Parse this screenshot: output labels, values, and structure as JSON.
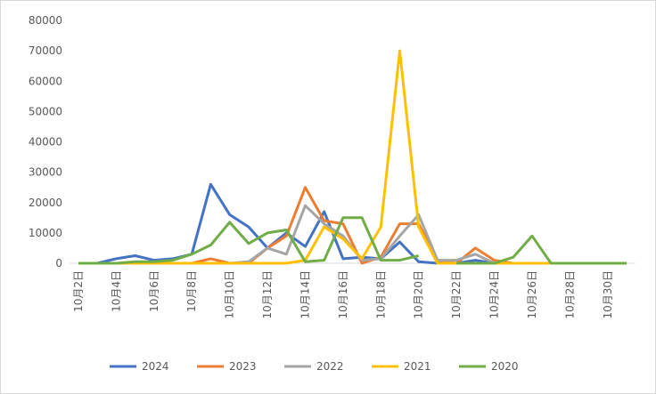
{
  "chart_data": {
    "type": "line",
    "categories": [
      "10月2日",
      null,
      "10月4日",
      null,
      "10月6日",
      null,
      "10月8日",
      null,
      "10月10日",
      null,
      "10月12日",
      null,
      "10月14日",
      null,
      "10月16日",
      null,
      "10月18日",
      null,
      "10月20日",
      null,
      "10月22日",
      null,
      "10月24日",
      null,
      "10月26日",
      null,
      "10月28日",
      null,
      "10月30日",
      null
    ],
    "series": [
      {
        "name": "2024",
        "color": "#4472c4",
        "values": [
          0,
          0,
          1500,
          2500,
          1000,
          1500,
          3000,
          26000,
          16000,
          12000,
          5000,
          10000,
          5500,
          17000,
          1500,
          2000,
          1500,
          7000,
          500,
          0,
          0,
          1000,
          0,
          0,
          0,
          0,
          0,
          0,
          0,
          0
        ]
      },
      {
        "name": "2023",
        "color": "#ed7d31",
        "values": [
          0,
          0,
          0,
          0,
          0,
          0,
          0,
          1500,
          0,
          0,
          5000,
          9000,
          25000,
          14000,
          13000,
          0,
          2000,
          13000,
          13000,
          1000,
          0,
          5000,
          1000,
          0,
          0,
          0,
          0,
          0,
          0,
          0
        ]
      },
      {
        "name": "2022",
        "color": "#a5a5a5",
        "values": [
          0,
          0,
          0,
          0,
          0,
          0,
          0,
          0,
          0,
          500,
          5000,
          3000,
          19000,
          13000,
          9000,
          1000,
          1500,
          9000,
          16000,
          1000,
          1000,
          3000,
          0,
          0,
          0,
          0,
          0,
          0,
          0,
          0
        ]
      },
      {
        "name": "2021",
        "color": "#ffc000",
        "values": [
          0,
          0,
          0,
          0,
          0,
          0,
          0,
          0,
          0,
          0,
          0,
          0,
          1000,
          12000,
          8000,
          1500,
          12000,
          70000,
          12000,
          0,
          0,
          0,
          0,
          0,
          0,
          0,
          0,
          0,
          0,
          0
        ]
      },
      {
        "name": "2020",
        "color": "#70ad47",
        "values": [
          0,
          0,
          0,
          500,
          500,
          1000,
          3000,
          6000,
          13500,
          6500,
          10000,
          11000,
          500,
          1000,
          15000,
          15000,
          1000,
          1000,
          2500,
          null,
          0,
          0,
          0,
          2000,
          9000,
          0,
          0,
          0,
          0,
          0
        ]
      }
    ],
    "ylim": [
      0,
      80000
    ],
    "yticks": [
      0,
      10000,
      20000,
      30000,
      40000,
      50000,
      60000,
      70000,
      80000
    ],
    "grid": false,
    "legend": "bottom"
  }
}
